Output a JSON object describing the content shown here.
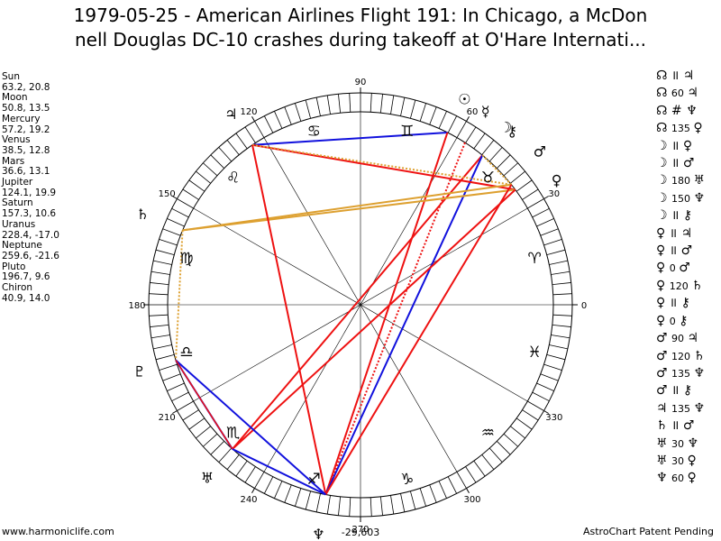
{
  "title": {
    "line1": "1979-05-25 - American Airlines Flight 191: In Chicago, a McDon",
    "line2": "nell Douglas DC-10 crashes during takeoff at O'Hare Internati..."
  },
  "positions": [
    {
      "name": "Sun",
      "value": "63.2, 20.8"
    },
    {
      "name": "Moon",
      "value": "50.8, 13.5"
    },
    {
      "name": "Mercury",
      "value": "57.2, 19.2"
    },
    {
      "name": "Venus",
      "value": "38.5, 12.8"
    },
    {
      "name": "Mars",
      "value": "36.6, 13.1"
    },
    {
      "name": "Jupiter",
      "value": "124.1, 19.9"
    },
    {
      "name": "Saturn",
      "value": "157.3, 10.6"
    },
    {
      "name": "Uranus",
      "value": "228.4, -17.0"
    },
    {
      "name": "Neptune",
      "value": "259.6, -21.6"
    },
    {
      "name": "Pluto",
      "value": "196.7, 9.6"
    },
    {
      "name": "Chiron",
      "value": "40.9, 14.0"
    }
  ],
  "aspects": [
    {
      "a": "☊",
      "sym": "॥",
      "b": "♃"
    },
    {
      "a": "☊",
      "sym": "60",
      "b": "♃"
    },
    {
      "a": "☊",
      "sym": "#",
      "b": "♆"
    },
    {
      "a": "☊",
      "sym": "135",
      "b": "♀"
    },
    {
      "a": "☽",
      "sym": "॥",
      "b": "♀"
    },
    {
      "a": "☽",
      "sym": "॥",
      "b": "♂"
    },
    {
      "a": "☽",
      "sym": "180",
      "b": "♅"
    },
    {
      "a": "☽",
      "sym": "150",
      "b": "♆"
    },
    {
      "a": "☽",
      "sym": "॥",
      "b": "⚷"
    },
    {
      "a": "♀",
      "sym": "॥",
      "b": "♃"
    },
    {
      "a": "♀",
      "sym": "॥",
      "b": "♂"
    },
    {
      "a": "♀",
      "sym": "0",
      "b": "♂"
    },
    {
      "a": "♀",
      "sym": "120",
      "b": "♄"
    },
    {
      "a": "♀",
      "sym": "॥",
      "b": "⚷"
    },
    {
      "a": "♀",
      "sym": "0",
      "b": "⚷"
    },
    {
      "a": "♂",
      "sym": "90",
      "b": "♃"
    },
    {
      "a": "♂",
      "sym": "120",
      "b": "♄"
    },
    {
      "a": "♂",
      "sym": "135",
      "b": "♆"
    },
    {
      "a": "♂",
      "sym": "॥",
      "b": "⚷"
    },
    {
      "a": "♃",
      "sym": "135",
      "b": "♆"
    },
    {
      "a": "♄",
      "sym": "॥",
      "b": "♂"
    },
    {
      "a": "♅",
      "sym": "30",
      "b": "♆"
    },
    {
      "a": "♅",
      "sym": "30",
      "b": "♀"
    },
    {
      "a": "♆",
      "sym": "60",
      "b": "♀"
    }
  ],
  "footer": {
    "left": "www.harmoniclife.com",
    "right": "AstroChart Patent Pending",
    "bottom_value": "-29,603"
  },
  "wheel": {
    "degree_labels": [
      "0",
      "30",
      "60",
      "90",
      "120",
      "150",
      "180",
      "210",
      "240",
      "270",
      "300",
      "330"
    ],
    "signs": [
      "♈",
      "♉",
      "♊",
      "♋",
      "♌",
      "♍",
      "♎",
      "♏",
      "♐",
      "♑",
      "♒",
      "♓"
    ],
    "planets": [
      {
        "name": "Sun",
        "glyph": "☉",
        "lon": 63.2
      },
      {
        "name": "Moon",
        "glyph": "☽",
        "lon": 50.8
      },
      {
        "name": "Mercury",
        "glyph": "☿",
        "lon": 57.2
      },
      {
        "name": "Venus",
        "glyph": "♀",
        "lon": 38.5
      },
      {
        "name": "Mars",
        "glyph": "♂",
        "lon": 36.6
      },
      {
        "name": "Jupiter",
        "glyph": "♃",
        "lon": 124.1
      },
      {
        "name": "Saturn",
        "glyph": "♄",
        "lon": 157.3
      },
      {
        "name": "Uranus",
        "glyph": "♅",
        "lon": 228.4
      },
      {
        "name": "Neptune",
        "glyph": "♆",
        "lon": 259.6
      },
      {
        "name": "Pluto",
        "glyph": "♇",
        "lon": 196.7
      },
      {
        "name": "Chiron",
        "glyph": "⚷",
        "lon": 40.9
      }
    ],
    "colors": {
      "red": "#ee1111",
      "blue": "#1111dd",
      "gold": "#dda030"
    }
  }
}
